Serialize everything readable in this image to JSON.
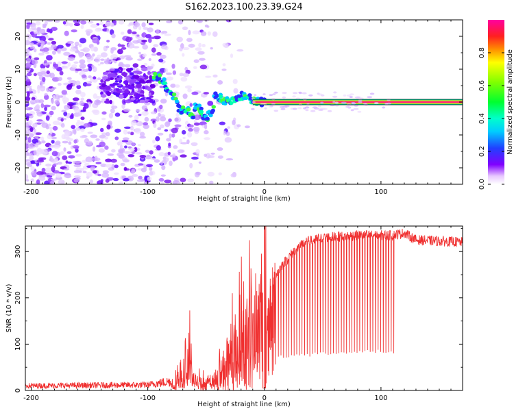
{
  "title": "S162.2023.100.23.39.G24",
  "chart_data": [
    {
      "type": "heatmap",
      "xlabel": "Height of straight line (km)",
      "ylabel": "Frequency (Hz)",
      "xlim": [
        -205,
        170
      ],
      "ylim": [
        -25,
        25
      ],
      "x_ticks": [
        -200,
        -100,
        0,
        100
      ],
      "y_ticks": [
        -20,
        -10,
        0,
        10,
        20
      ],
      "colorbar": {
        "label": "Normalized spectral amplitude",
        "range": [
          0,
          1
        ],
        "ticks": [
          "0.0",
          "0.2",
          "0.4",
          "0.6",
          "0.8"
        ],
        "colormap": "rainbow (white-violet-blue-cyan-green-yellow-red-magenta)"
      },
      "signal_track": {
        "description": "frequency trace of carrier",
        "points": [
          [
            -95,
            8
          ],
          [
            -88,
            7
          ],
          [
            -82,
            3
          ],
          [
            -76,
            1
          ],
          [
            -72,
            -3
          ],
          [
            -66,
            -2
          ],
          [
            -62,
            -5
          ],
          [
            -58,
            -1
          ],
          [
            -54,
            -3
          ],
          [
            -50,
            -5
          ],
          [
            -45,
            -3
          ],
          [
            -42,
            2
          ],
          [
            -36,
            1
          ],
          [
            -30,
            0
          ],
          [
            -24,
            1
          ],
          [
            -18,
            2
          ],
          [
            -12,
            1
          ],
          [
            -6,
            0
          ],
          [
            0,
            0
          ],
          [
            170,
            0
          ]
        ],
        "band_start": -10,
        "band_value": 0
      },
      "grid": false
    },
    {
      "type": "line",
      "xlabel": "Height of straight line (km)",
      "ylabel": "SNR (10 * v/v)",
      "xlim": [
        -205,
        170
      ],
      "ylim": [
        0,
        355
      ],
      "x_ticks": [
        -200,
        -100,
        0,
        100
      ],
      "y_ticks": [
        0,
        100,
        200,
        300
      ],
      "series": [
        {
          "color": "#f03030",
          "envelope": [
            [
              -205,
              10
            ],
            [
              -100,
              12
            ],
            [
              -80,
              20
            ],
            [
              -70,
              40
            ],
            [
              -65,
              110
            ],
            [
              -60,
              30
            ],
            [
              -50,
              20
            ],
            [
              -40,
              40
            ],
            [
              -35,
              80
            ],
            [
              -30,
              110
            ],
            [
              -20,
              140
            ],
            [
              -10,
              200
            ],
            [
              -2,
              260
            ],
            [
              0,
              40
            ],
            [
              5,
              230
            ],
            [
              15,
              270
            ],
            [
              25,
              300
            ],
            [
              35,
              320
            ],
            [
              50,
              330
            ],
            [
              80,
              335
            ],
            [
              110,
              335
            ],
            [
              120,
              340
            ],
            [
              130,
              325
            ],
            [
              170,
              320
            ]
          ],
          "dips_floor": [
            [
              20,
              70
            ],
            [
              50,
              75
            ],
            [
              80,
              80
            ],
            [
              112,
              80
            ]
          ],
          "dips_range": [
            10,
            112
          ]
        }
      ],
      "grid": false
    }
  ]
}
